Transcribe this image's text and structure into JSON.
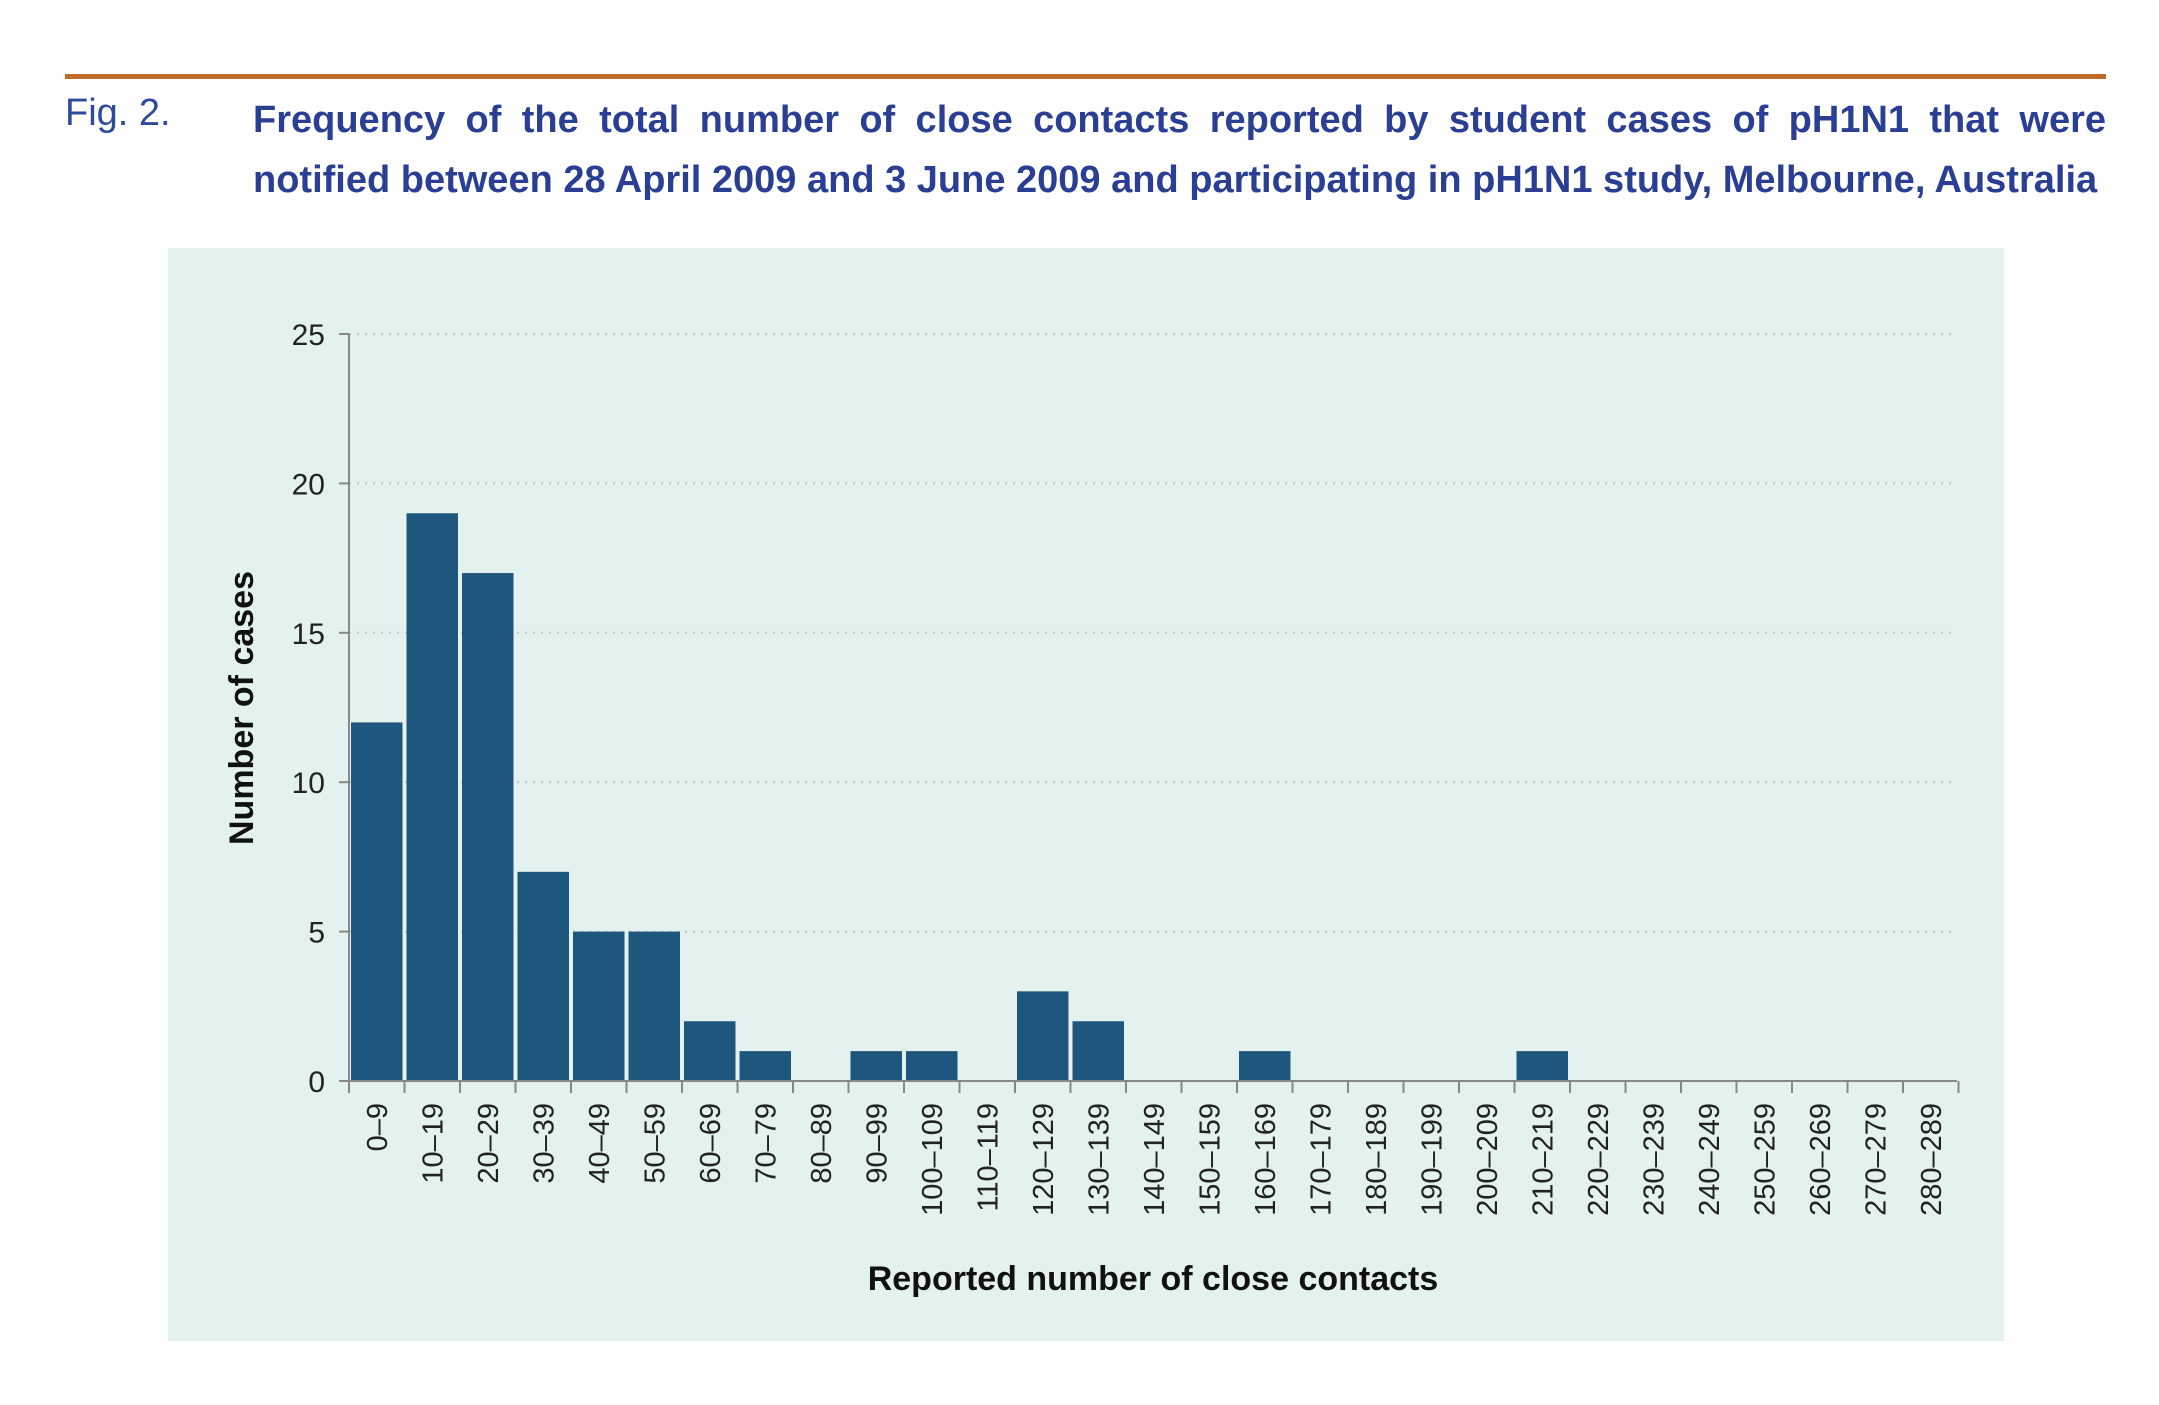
{
  "figure": {
    "label": "Fig. 2.",
    "title": "Frequency of the total number of close contacts reported by student cases of pH1N1 that were notified between 28 April 2009 and 3 June 2009 and participating in pH1N1 study, Melbourne, Australia"
  },
  "colors": {
    "bar": "#1f567d",
    "panel": "#e3f1ef",
    "rule": "#c06a2b",
    "title": "#2a3f93"
  },
  "chart_data": {
    "type": "bar",
    "title": "",
    "xlabel": "Reported number of close contacts",
    "ylabel": "Number of cases",
    "ylim": [
      0,
      25
    ],
    "yticks": [
      0,
      5,
      10,
      15,
      20,
      25
    ],
    "grid": "horizontal dotted",
    "categories": [
      "0–9",
      "10–19",
      "20–29",
      "30–39",
      "40–49",
      "50–59",
      "60–69",
      "70–79",
      "80–89",
      "90–99",
      "100–109",
      "110–119",
      "120–129",
      "130–139",
      "140–149",
      "150–159",
      "160–169",
      "170–179",
      "180–189",
      "190–199",
      "200–209",
      "210–219",
      "220–229",
      "230–239",
      "240–249",
      "250–259",
      "260–269",
      "270–279",
      "280–289"
    ],
    "values": [
      12,
      19,
      17,
      7,
      5,
      5,
      2,
      1,
      0,
      1,
      1,
      0,
      3,
      2,
      0,
      0,
      1,
      0,
      0,
      0,
      0,
      1,
      0,
      0,
      0,
      0,
      0,
      0,
      0
    ]
  }
}
